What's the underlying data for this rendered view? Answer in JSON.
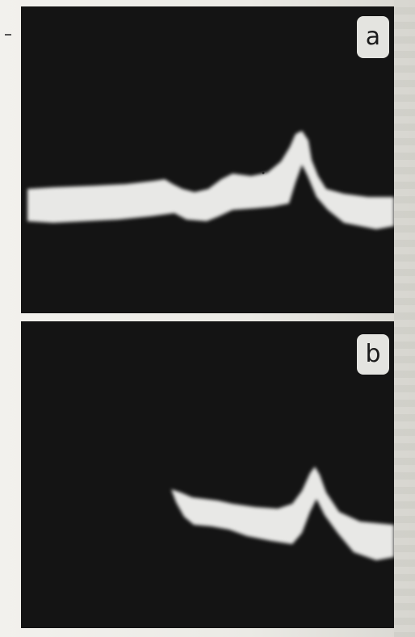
{
  "panels": [
    {
      "id": "a",
      "label": "a"
    },
    {
      "id": "b",
      "label": "b"
    }
  ],
  "colors": {
    "background": "#141414",
    "trace": "#e8e8e6",
    "label_box": "#e4e4e0",
    "page": "#eeede9"
  }
}
